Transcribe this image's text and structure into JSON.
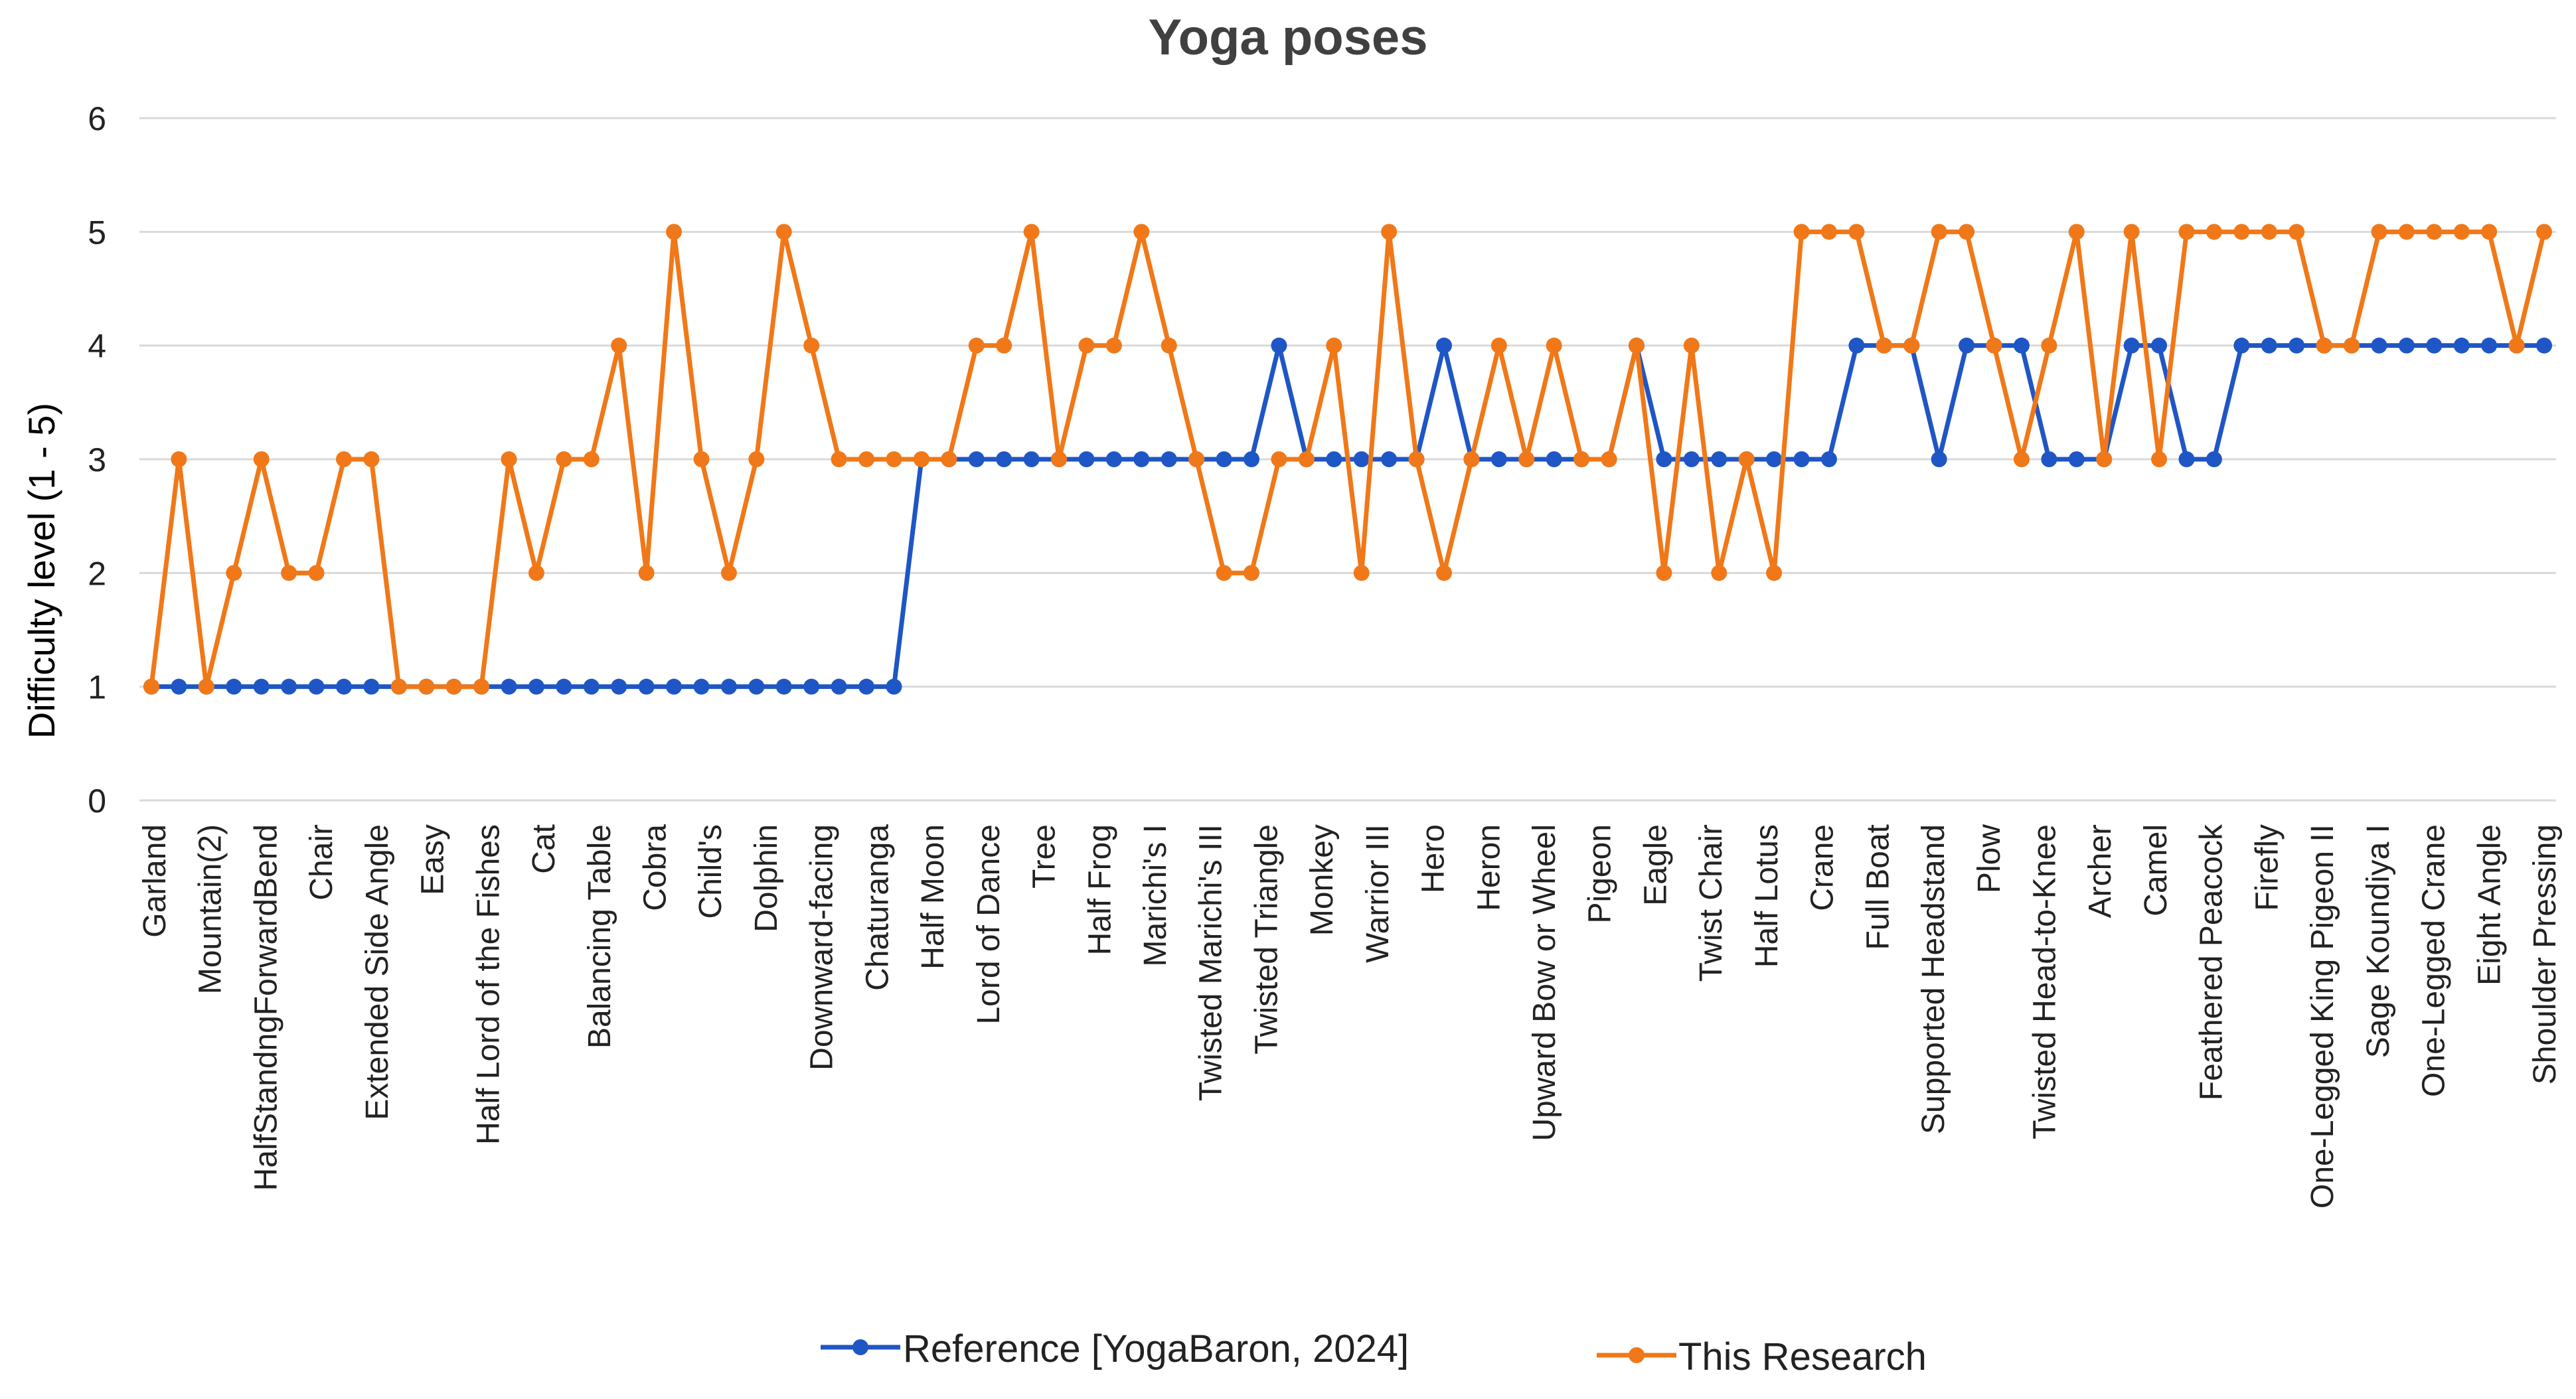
{
  "chart_data": {
    "type": "line",
    "title": "Yoga poses",
    "xlabel": "",
    "ylabel": "Difficulty level (1 - 5)",
    "ylim": [
      0,
      6
    ],
    "yticks": [
      "0",
      "1",
      "2",
      "3",
      "4",
      "5",
      "6"
    ],
    "grid": "horizontal",
    "legend_position": "bottom",
    "x_labels": [
      "Garland",
      "Mountain(2)",
      "HalfStandngForwardBend",
      "Chair",
      "Extended Side Angle",
      "Easy",
      "Half Lord of the Fishes",
      "Cat",
      "Balancing Table",
      "Cobra",
      "Child's",
      "Dolphin",
      "Downward-facing",
      "Chaturanga",
      "Half Moon",
      "Lord of Dance",
      "Tree",
      "Half Frog",
      "Marichi's I",
      "Twisted Marichi's III",
      "Twisted Triangle",
      "Monkey",
      "Warrior III",
      "Hero",
      "Heron",
      "Upward Bow or Wheel",
      "Pigeon",
      "Eagle",
      "Twist Chair",
      "Half Lotus",
      "Crane",
      "Full Boat",
      "Supported Headstand",
      "Plow",
      "Twisted Head-to-Knee",
      "Archer",
      "Camel",
      "Feathered Peacock",
      "Firefly",
      "One-Legged King Pigeon II",
      "Sage Koundiya I",
      "One-Legged Crane",
      "Eight Angle",
      "Shoulder Pressing"
    ],
    "series": [
      {
        "name": "Reference  [YogaBaron, 2024]",
        "color": "#1f56c5",
        "values": [
          1,
          1,
          1,
          1,
          1,
          1,
          1,
          1,
          1,
          1,
          1,
          1,
          1,
          1,
          1,
          1,
          1,
          1,
          1,
          1,
          1,
          1,
          1,
          1,
          1,
          1,
          1,
          1,
          3,
          3,
          3,
          3,
          3,
          3,
          3,
          3,
          3,
          3,
          3,
          3,
          3,
          4,
          3,
          3,
          3,
          3,
          3,
          4,
          3,
          3,
          3,
          3,
          3,
          3,
          4,
          3,
          3,
          3,
          3,
          3,
          3,
          3,
          4,
          4,
          4,
          3,
          4,
          4,
          4,
          3,
          3,
          3,
          4,
          4,
          3,
          3,
          4,
          4,
          4,
          4,
          4,
          4,
          4,
          4,
          4,
          4,
          4,
          4
        ]
      },
      {
        "name": "This Research",
        "color": "#f07818",
        "values": [
          1,
          3,
          1,
          2,
          3,
          2,
          2,
          3,
          3,
          1,
          1,
          1,
          1,
          3,
          2,
          3,
          3,
          4,
          2,
          5,
          3,
          2,
          3,
          5,
          4,
          3,
          3,
          3,
          3,
          3,
          4,
          4,
          5,
          3,
          4,
          4,
          5,
          4,
          3,
          2,
          2,
          3,
          3,
          4,
          2,
          5,
          3,
          2,
          3,
          4,
          3,
          4,
          3,
          3,
          4,
          2,
          4,
          2,
          3,
          2,
          5,
          5,
          5,
          4,
          4,
          5,
          5,
          4,
          3,
          4,
          5,
          3,
          5,
          3,
          5,
          5,
          5,
          5,
          5,
          4,
          4,
          5,
          5,
          5,
          5,
          5,
          4,
          5
        ]
      }
    ]
  }
}
